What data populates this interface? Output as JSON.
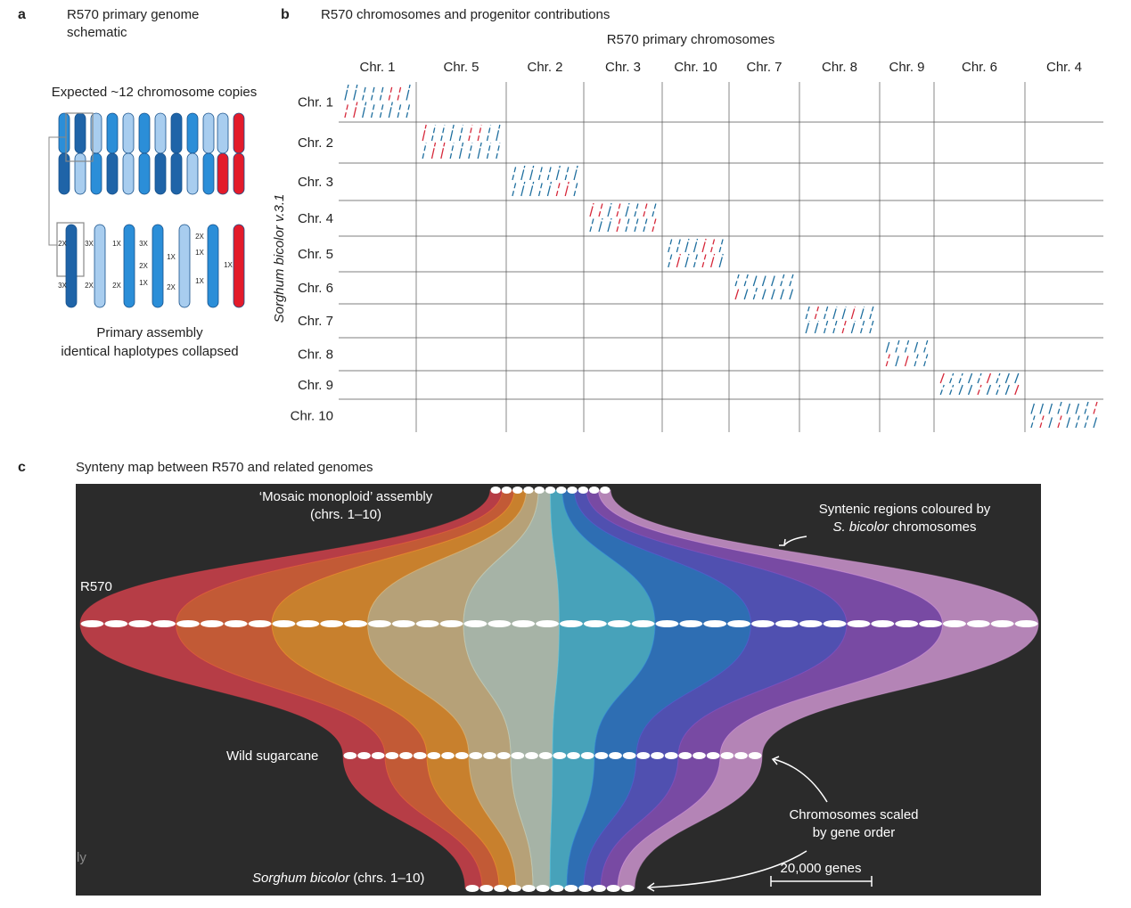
{
  "panel_a": {
    "letter": "a",
    "title_lines": [
      "R570 primary genome",
      "schematic"
    ],
    "top_label": "Expected ~12 chromosome copies",
    "copy_labels": [
      "2X",
      "3X",
      "1X",
      "3X",
      "1X",
      "2X",
      "1X",
      "1X",
      "2X",
      "3X",
      "2X",
      "2X",
      "1X",
      "2X",
      "1X"
    ],
    "bottom_label_lines": [
      "Primary assembly",
      "identical haplotypes collapsed"
    ]
  },
  "panel_b": {
    "letter": "b",
    "title": "R570 chromosomes and progenitor contributions",
    "x_title": "R570 primary chromosomes",
    "columns": [
      "Chr. 1",
      "Chr. 5",
      "Chr. 2",
      "Chr. 3",
      "Chr. 10",
      "Chr. 7",
      "Chr. 8",
      "Chr. 9",
      "Chr. 6",
      "Chr. 4"
    ],
    "y_title": "Sorghum bicolor v.3.1",
    "rows": [
      "Chr. 1",
      "Chr. 2",
      "Chr. 3",
      "Chr. 4",
      "Chr. 5",
      "Chr. 6",
      "Chr. 7",
      "Chr. 8",
      "Chr. 9",
      "Chr. 10"
    ]
  },
  "panel_c": {
    "letter": "c",
    "title": "Synteny map between R570 and related genomes",
    "top_label_lines": [
      "‘Mosaic monoploid’ assembly",
      "(chrs. 1–10)"
    ],
    "r570_label": "R570",
    "wild_label": "Wild sugarcane",
    "sorghum_label_italic": "Sorghum bicolor",
    "sorghum_label_rest": " (chrs. 1–10)",
    "cut_text": "ly",
    "syntenic_note": {
      "line1": "Syntenic regions coloured by",
      "italic": "S. bicolor",
      "rest": " chromosomes"
    },
    "scale_note_lines": [
      "Chromosomes scaled",
      "by gene order"
    ],
    "scale_bar": "20,000 genes"
  }
}
